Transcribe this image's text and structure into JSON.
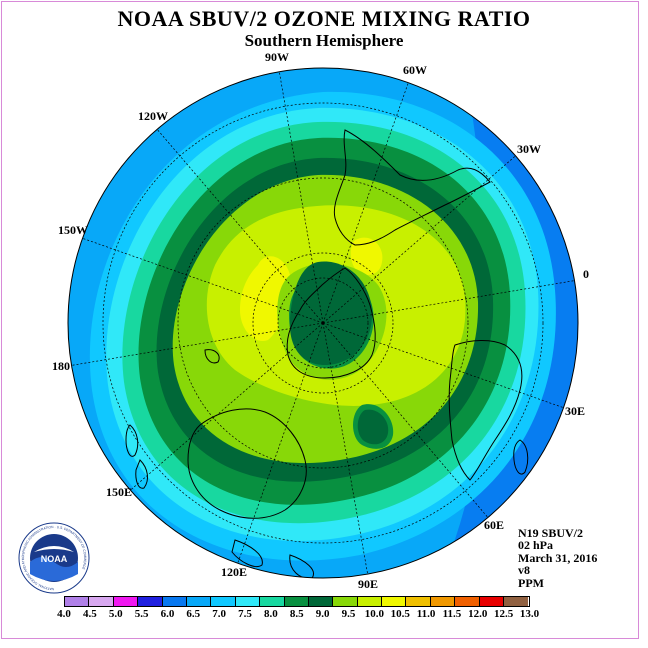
{
  "title": "NOAA SBUV/2 OZONE MIXING RATIO",
  "subtitle": "Southern Hemisphere",
  "longitude_labels": [
    "90W",
    "60W",
    "30W",
    "0",
    "30E",
    "60E",
    "90E",
    "120E",
    "150E",
    "180",
    "150W",
    "120W"
  ],
  "info": {
    "satellite": "N19 SBUV/2",
    "level": "02 hPa",
    "date": "March 31, 2016",
    "version": "v8",
    "units": "PPM"
  },
  "logo": {
    "text": "NOAA",
    "ring_text": "NATIONAL OCEANIC AND ATMOSPHERIC ADMINISTRATION · U.S. DEPARTMENT OF COMMERCE"
  },
  "colorbar": {
    "ticks": [
      "4.0",
      "4.5",
      "5.0",
      "5.5",
      "6.0",
      "6.5",
      "7.0",
      "7.5",
      "8.0",
      "8.5",
      "9.0",
      "9.5",
      "10.0",
      "10.5",
      "11.0",
      "11.5",
      "12.0",
      "12.5",
      "13.0"
    ],
    "colors": [
      "#b080e8",
      "#d8a8f0",
      "#f018f0",
      "#2020e0",
      "#0878f0",
      "#08a8f8",
      "#10c8ff",
      "#30e8f8",
      "#18d8a0",
      "#089040",
      "#006838",
      "#88d808",
      "#c8f000",
      "#f0f800",
      "#f0c000",
      "#f09800",
      "#f06000",
      "#e80000",
      "#906040"
    ]
  },
  "chart_data": {
    "type": "map",
    "projection": "south-polar-stereographic",
    "quantity": "ozone mixing ratio",
    "units": "PPM",
    "contour_levels": [
      4.0,
      4.5,
      5.0,
      5.5,
      6.0,
      6.5,
      7.0,
      7.5,
      8.0,
      8.5,
      9.0,
      9.5,
      10.0,
      10.5,
      11.0,
      11.5,
      12.0,
      12.5,
      13.0
    ],
    "features": [
      {
        "band": "9.0-9.5",
        "location": "polar low over Antarctica"
      },
      {
        "band": "10.5-11.0",
        "location": "maxima near 60W and 150W-120W"
      },
      {
        "band": "9.0-9.5",
        "location": "closed low near 75E"
      }
    ]
  }
}
